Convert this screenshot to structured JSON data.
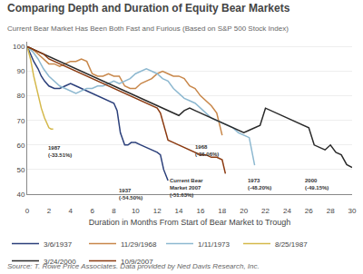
{
  "chart_data": {
    "type": "line",
    "title": "Comparing Depth and Duration of Equity Bear Markets",
    "subtitle": "Current Bear Market Has Been Both Fast and Furious (Based on S&P 500 Stock Index)",
    "xlabel": "Duration in Months From Start of Bear Market to Trough",
    "source": "Source: T. Rowe Price Associates. Data provided by Ned Davis Research, Inc.",
    "xlim": [
      0,
      30
    ],
    "ylim": [
      40,
      102
    ],
    "xticks": [
      0,
      2,
      4,
      6,
      8,
      10,
      12,
      14,
      16,
      18,
      20,
      22,
      24,
      26,
      28,
      30
    ],
    "yticks": [
      40,
      50,
      60,
      70,
      80,
      90,
      100
    ],
    "grid": "y",
    "legend": "bottom",
    "series": [
      {
        "name": "3/6/1937",
        "color": "#2B3F7A",
        "x": [
          0,
          0.3,
          0.6,
          1,
          1.3,
          1.6,
          2,
          2.5,
          3,
          3.5,
          4,
          4.5,
          5,
          5.5,
          6,
          6.5,
          7,
          7.5,
          8,
          8.3,
          8.6,
          9,
          9.3,
          9.6,
          10,
          10.5,
          11,
          11.5,
          12,
          12.3,
          12.6,
          13
        ],
        "values": [
          100,
          97,
          94,
          91,
          88,
          86,
          84,
          83,
          83,
          84,
          85,
          84,
          83,
          82,
          81,
          80,
          79,
          78,
          77,
          74,
          65,
          60,
          60,
          61,
          61,
          60,
          59,
          58,
          57,
          56,
          50,
          45.5
        ]
      },
      {
        "name": "11/29/1968",
        "color": "#C8874A",
        "x": [
          0,
          0.5,
          1,
          1.5,
          2,
          2.5,
          3,
          3.5,
          4,
          4.5,
          5,
          5.5,
          6,
          6.5,
          7,
          7.5,
          8,
          8.5,
          9,
          9.5,
          10,
          10.5,
          11,
          11.5,
          12,
          12.5,
          13,
          13.5,
          14,
          14.5,
          15,
          15.5,
          16,
          16.5,
          17,
          17.5,
          18
        ],
        "values": [
          100,
          99,
          97,
          95,
          93,
          93,
          92,
          93,
          94,
          94,
          95,
          94,
          89,
          88,
          88,
          89,
          88,
          88,
          84,
          83,
          83,
          85,
          86,
          87,
          89,
          90,
          89,
          88,
          88,
          87,
          84,
          83,
          80,
          78,
          76,
          73,
          63.94
        ]
      },
      {
        "name": "1/11/1973",
        "color": "#8DB8D0",
        "x": [
          0,
          0.5,
          1,
          1.5,
          2,
          2.5,
          3,
          3.5,
          4,
          4.5,
          5,
          5.5,
          6,
          6.5,
          7,
          7.5,
          8,
          8.5,
          9,
          9.5,
          10,
          10.5,
          11,
          11.5,
          12,
          12.5,
          13,
          13.5,
          14,
          14.5,
          15,
          15.5,
          16,
          16.5,
          17,
          17.5,
          18,
          18.5,
          19,
          19.5,
          20,
          20.5,
          21
        ],
        "values": [
          100,
          98,
          95,
          91,
          88,
          86,
          84,
          83,
          82,
          81,
          82,
          83,
          83,
          84,
          84,
          85,
          86,
          85,
          86,
          87,
          89,
          90,
          91,
          90,
          89,
          87,
          86,
          83,
          81,
          79,
          78,
          77,
          75,
          73,
          71,
          70,
          69,
          68,
          67,
          65,
          64,
          63,
          51.8
        ]
      },
      {
        "name": "8/25/1987",
        "color": "#D4B84A",
        "x": [
          0,
          0.3,
          0.6,
          1,
          1.3,
          1.6,
          2,
          2.2,
          2.4
        ],
        "values": [
          100,
          95,
          88,
          80,
          75,
          71,
          67,
          66.49,
          66.49
        ]
      },
      {
        "name": "3/24/2000",
        "color": "#2A2A2A",
        "x": [
          0,
          0.5,
          1,
          1.5,
          2,
          2.5,
          3,
          3.5,
          4,
          4.5,
          5,
          5.5,
          6,
          6.5,
          7,
          7.5,
          8,
          8.5,
          9,
          9.5,
          10,
          10.5,
          11,
          11.5,
          12,
          12.5,
          13,
          13.5,
          14,
          14.5,
          15,
          15.5,
          16,
          16.5,
          17,
          17.5,
          18,
          18.5,
          19,
          19.5,
          20,
          20.5,
          21,
          21.5,
          22,
          22.5,
          23,
          23.5,
          24,
          24.5,
          25,
          25.5,
          26,
          26.5,
          27,
          27.5,
          28,
          28.5,
          29,
          29.5,
          30
        ],
        "values": [
          100,
          99,
          98,
          97,
          96,
          95,
          94,
          93,
          92,
          91,
          90,
          89,
          88,
          87,
          86,
          85,
          84,
          83,
          82,
          81,
          80,
          79,
          78,
          77,
          76,
          75,
          74,
          73,
          72,
          74,
          75,
          74,
          73,
          72,
          71,
          70,
          69,
          68,
          67,
          66,
          65,
          66,
          67,
          68,
          75,
          74,
          73,
          72,
          71,
          70,
          69,
          68,
          67,
          60,
          59,
          58,
          60,
          57,
          56,
          52,
          50.85
        ]
      },
      {
        "name": "10/9/2007",
        "color": "#8B3A10",
        "x": [
          0,
          0.5,
          1,
          1.5,
          2,
          2.5,
          3,
          3.5,
          4,
          4.5,
          5,
          5.5,
          6,
          6.5,
          7,
          7.5,
          8,
          8.5,
          9,
          9.5,
          10,
          10.5,
          11,
          11.5,
          12,
          12.3,
          12.6,
          13,
          13.5,
          14,
          14.5,
          15,
          15.5,
          16,
          16.5,
          17,
          17.5,
          18,
          18.3
        ],
        "values": [
          100,
          99,
          98,
          97,
          95,
          94,
          93,
          92,
          91,
          90,
          89,
          88,
          87,
          86,
          85,
          84,
          83,
          82,
          81,
          80,
          79,
          78,
          77,
          76,
          75,
          73,
          68,
          62,
          61,
          60,
          59,
          58,
          57,
          56,
          56,
          55,
          55,
          54,
          48.37
        ]
      }
    ],
    "annotations": [
      {
        "text": "1987\n(-33.51%)",
        "x": 1.8,
        "y": 60.5
      },
      {
        "text": "1937\n(-54.50%)",
        "x": 8.3,
        "y": 43.5
      },
      {
        "text": "Current Bear\nMarket 2007\n(-51.63%)",
        "x": 13.0,
        "y": 47.5
      },
      {
        "text": "1968\n(-36.06%)",
        "x": 15.3,
        "y": 61.0
      },
      {
        "text": "1973\n(-48.20%)",
        "x": 20.2,
        "y": 47.5
      },
      {
        "text": "2000\n(-49.15%)",
        "x": 25.5,
        "y": 47.5
      }
    ]
  }
}
